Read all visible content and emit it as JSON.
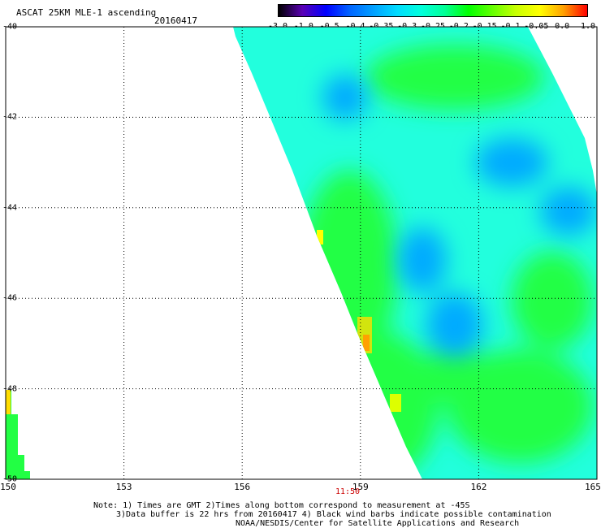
{
  "header": {
    "title": "ASCAT 25KM MLE-1 ascending",
    "date": "20160417"
  },
  "colorbar": {
    "labels": [
      "-3.0",
      "-1.0",
      "-0.5",
      "-0.4",
      "-0.35",
      "-0.3",
      "-0.25",
      "-0.2",
      "-0.15",
      "-0.1",
      "-0.05",
      "0.0",
      "1.0"
    ],
    "colors": [
      "#000000",
      "#5a00b4",
      "#0000ff",
      "#0064ff",
      "#00a0ff",
      "#00dcff",
      "#00ffdc",
      "#00ff96",
      "#00ff00",
      "#64ff00",
      "#c8ff00",
      "#ffff00",
      "#ffa000",
      "#ff0000"
    ]
  },
  "axes": {
    "x_ticks": [
      "150",
      "153",
      "156",
      "159",
      "162",
      "165"
    ],
    "y_ticks": [
      "-40",
      "-42",
      "-44",
      "-46",
      "-48",
      "-50"
    ]
  },
  "time_label": "11:50",
  "notes": [
    "Note: 1) Times are GMT 2)Times along bottom correspond to measurement at -45S",
    "3)Data buffer is 22 hrs from 20160417 4) Black wind barbs indicate possible contamination",
    "NOAA/NESDIS/Center for Satellite Applications and Research"
  ],
  "theme": {
    "grid": "#000000",
    "swath_base": "#22ffdd",
    "swath_green": "#22ff44",
    "swath_blue": "#00aaff"
  }
}
